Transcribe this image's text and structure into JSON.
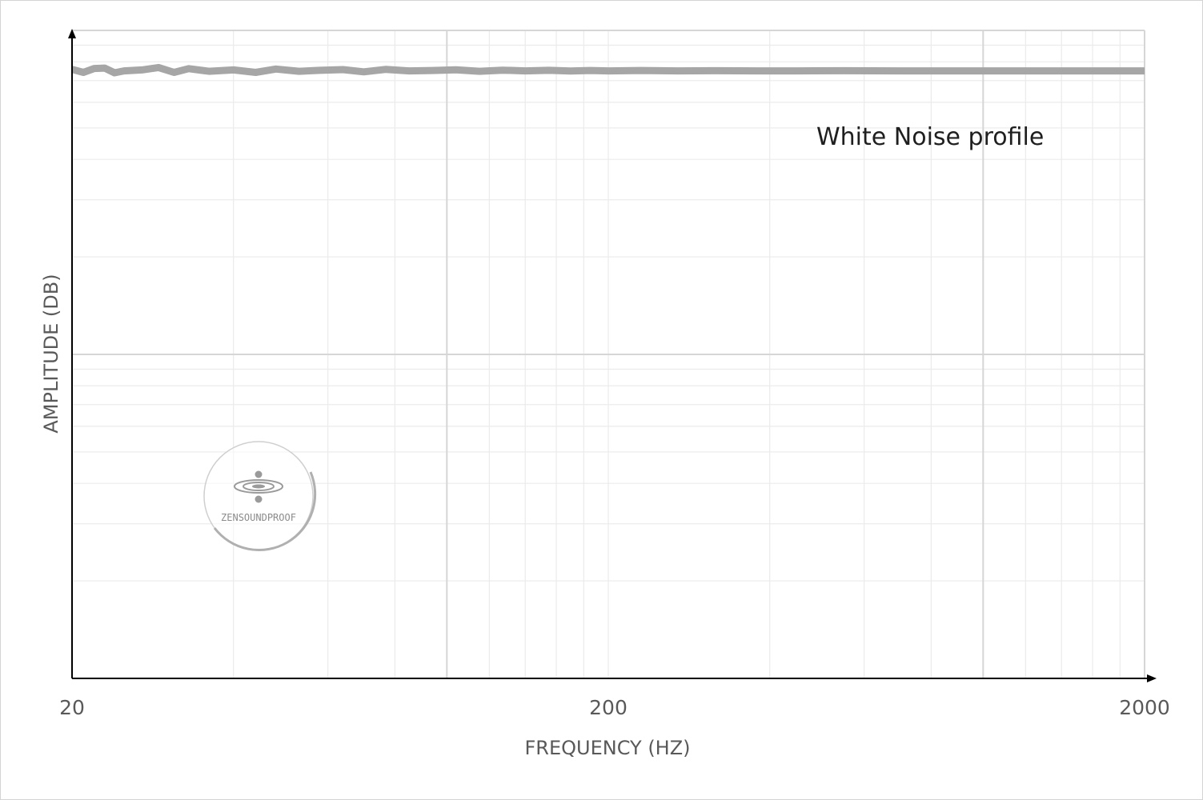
{
  "chart_data": {
    "type": "line",
    "x_scale": "log",
    "xlim": [
      20,
      2000
    ],
    "x_ticks": [
      20,
      200,
      2000
    ],
    "xlabel": "FREQUENCY (HZ)",
    "ylabel": "AMPLITUDE (DB)",
    "y_scale": "log",
    "ylim": [
      0.01,
      1
    ],
    "y_ticks": [],
    "grid": true,
    "annotation": "White Noise profile",
    "series": [
      {
        "color": "#a6a6a6",
        "x": [
          20,
          21,
          22,
          23,
          24,
          25,
          27,
          29,
          31,
          33,
          36,
          40,
          44,
          48,
          53,
          58,
          64,
          70,
          77,
          85,
          94,
          104,
          115,
          127,
          140,
          155,
          170,
          185,
          200,
          230,
          270,
          320,
          380,
          450,
          550,
          700,
          900,
          1200,
          1600,
          2000
        ],
        "y": [
          0.758,
          0.742,
          0.763,
          0.765,
          0.74,
          0.75,
          0.755,
          0.768,
          0.742,
          0.762,
          0.748,
          0.755,
          0.742,
          0.76,
          0.748,
          0.753,
          0.757,
          0.745,
          0.758,
          0.75,
          0.752,
          0.756,
          0.748,
          0.754,
          0.75,
          0.753,
          0.749,
          0.752,
          0.75,
          0.752,
          0.75,
          0.751,
          0.75,
          0.75,
          0.751,
          0.75,
          0.75,
          0.75,
          0.75,
          0.75
        ]
      }
    ]
  },
  "watermark": {
    "text": "ZENSOUNDPROOF"
  }
}
